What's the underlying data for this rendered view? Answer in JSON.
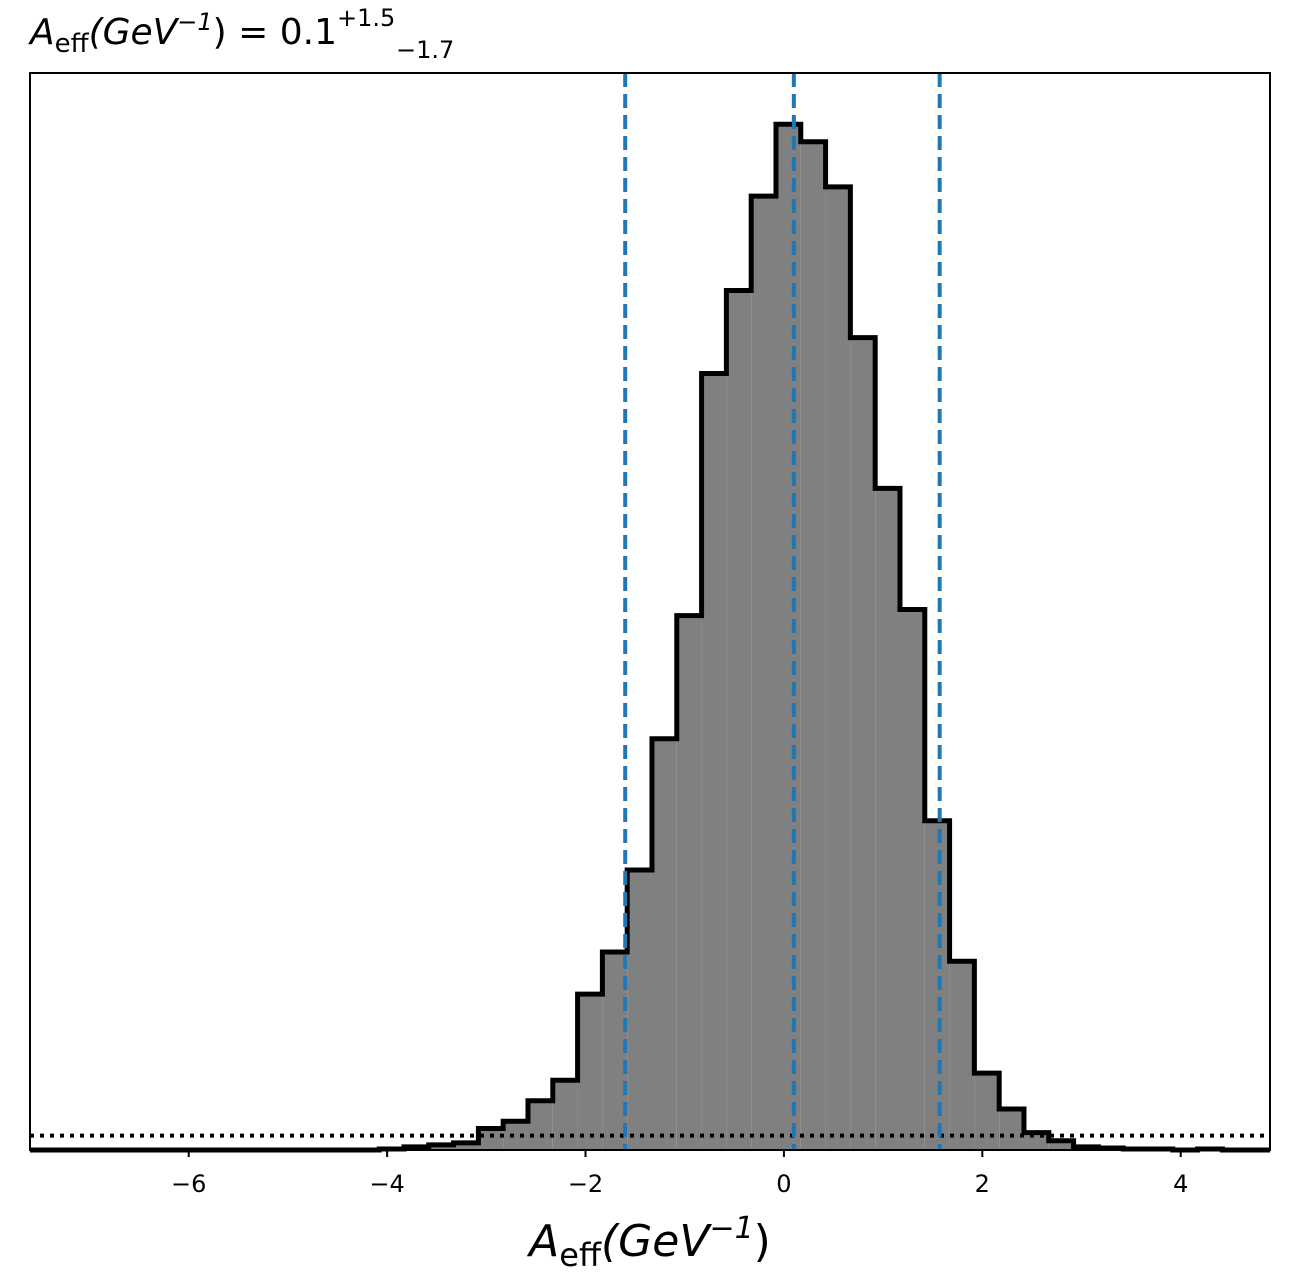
{
  "chart_data": {
    "type": "histogram",
    "title": {
      "symbol": "A",
      "subscript": "eff",
      "unit": "(GeV",
      "unit_exp": "−1",
      "unit_close": ")",
      "equals": " = 0.1",
      "plus": "+1.5",
      "minus": "−1.7"
    },
    "xlabel": {
      "symbol": "A",
      "subscript": "eff",
      "unit": "(GeV",
      "unit_exp": "−1",
      "unit_close": ")"
    },
    "xlim": [
      -7.6,
      4.9
    ],
    "ylim": [
      0,
      1.05
    ],
    "x_ticks": [
      -6,
      -4,
      -2,
      0,
      2,
      4
    ],
    "x_tick_labels": [
      "−6",
      "−4",
      "−2",
      "0",
      "2",
      "4"
    ],
    "y_ticks_visible": false,
    "bin_edges": [
      -4.08,
      -3.83,
      -3.58,
      -3.33,
      -3.08,
      -2.83,
      -2.58,
      -2.33,
      -2.08,
      -1.83,
      -1.58,
      -1.33,
      -1.08,
      -0.83,
      -0.58,
      -0.33,
      -0.08,
      0.17,
      0.42,
      0.67,
      0.92,
      1.17,
      1.42,
      1.67,
      1.92,
      2.17,
      2.42,
      2.67,
      2.92,
      3.17,
      3.42,
      3.67,
      3.92,
      4.17,
      4.42
    ],
    "counts": [
      0.001,
      0.003,
      0.005,
      0.007,
      0.021,
      0.028,
      0.048,
      0.068,
      0.152,
      0.193,
      0.273,
      0.401,
      0.521,
      0.757,
      0.838,
      0.93,
      1.0,
      0.983,
      0.939,
      0.792,
      0.645,
      0.527,
      0.321,
      0.184,
      0.075,
      0.04,
      0.017,
      0.009,
      0.003,
      0.002,
      0.001,
      0.001,
      0.0,
      0.001
    ],
    "fill_color": "#808080",
    "edge_color": "#000000",
    "vlines": [
      {
        "x": -1.6,
        "style": "dashed",
        "color": "#1f77b4"
      },
      {
        "x": 0.1,
        "style": "dashed",
        "color": "#1f77b4"
      },
      {
        "x": 1.57,
        "style": "dashed",
        "color": "#1f77b4"
      }
    ],
    "hline": {
      "y": 0.014,
      "style": "dotted",
      "color": "#000000"
    },
    "grid": false
  }
}
